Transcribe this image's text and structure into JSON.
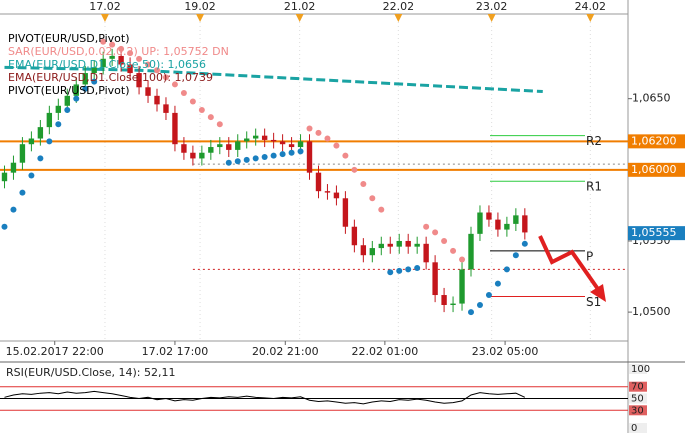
{
  "chart_data": {
    "type": "candlestick",
    "xlim": [
      -0.5,
      69.5
    ],
    "ylim": [
      1.04797,
      1.07095
    ],
    "yticks": [
      {
        "value": 1.065,
        "label": "1,0650"
      },
      {
        "value": 1.055,
        "label": "1,0550"
      },
      {
        "value": 1.05,
        "label": "1,0500"
      }
    ],
    "xticks": [
      {
        "value": 11.2,
        "label": "17.02"
      },
      {
        "value": 21.8,
        "label": "19.02"
      },
      {
        "value": 32.9,
        "label": "21.02"
      },
      {
        "value": 43.9,
        "label": "22.02"
      },
      {
        "value": 54.3,
        "label": "23.02"
      },
      {
        "value": 65.3,
        "label": "24.02"
      }
    ],
    "x2ticks": [
      {
        "value": 5.6,
        "label": "15.02.2017 22:00"
      },
      {
        "value": 19,
        "label": "17.02 17:00"
      },
      {
        "value": 31.3,
        "label": "20.02 21:00"
      },
      {
        "value": 42.4,
        "label": "22.02 01:00"
      },
      {
        "value": 55.8,
        "label": "23.02 05:00"
      }
    ],
    "up_color": "#1f9a2e",
    "down_color": "#c4161c",
    "open": [
      1.0592,
      1.0598,
      1.0605,
      1.0618,
      1.0622,
      1.063,
      1.064,
      1.0645,
      1.0652,
      1.066,
      1.0668,
      1.0672,
      1.0678,
      1.068,
      1.0674,
      1.0668,
      1.0658,
      1.0652,
      1.0646,
      1.064,
      1.0618,
      1.0612,
      1.0608,
      1.0612,
      1.0616,
      1.0618,
      1.0614,
      1.062,
      1.0622,
      1.0624,
      1.0621,
      1.062,
      1.0618,
      1.0616,
      1.062,
      1.0598,
      1.0585,
      1.0584,
      1.058,
      1.056,
      1.0547,
      1.054,
      1.0545,
      1.0548,
      1.0546,
      1.055,
      1.0546,
      1.0548,
      1.0535,
      1.0512,
      1.0505,
      1.0506,
      1.053,
      1.0555,
      1.057,
      1.0565,
      1.0558,
      1.0562,
      1.0568
    ],
    "high": [
      1.0603,
      1.061,
      1.0623,
      1.0627,
      1.0635,
      1.0645,
      1.065,
      1.0657,
      1.0665,
      1.0673,
      1.0677,
      1.0683,
      1.0685,
      1.0685,
      1.0679,
      1.0673,
      1.0663,
      1.0657,
      1.0651,
      1.0645,
      1.0623,
      1.0617,
      1.0617,
      1.0621,
      1.0623,
      1.0623,
      1.0625,
      1.0627,
      1.0629,
      1.0629,
      1.0626,
      1.0625,
      1.0623,
      1.0625,
      1.0625,
      1.0603,
      1.059,
      1.0589,
      1.0585,
      1.0565,
      1.0552,
      1.055,
      1.0553,
      1.0553,
      1.0555,
      1.0555,
      1.0553,
      1.0553,
      1.054,
      1.0517,
      1.0511,
      1.0535,
      1.056,
      1.0575,
      1.0575,
      1.057,
      1.0567,
      1.0573,
      1.0573
    ],
    "low": [
      1.0587,
      1.0593,
      1.06,
      1.0613,
      1.0617,
      1.0625,
      1.0635,
      1.064,
      1.0647,
      1.0655,
      1.0663,
      1.0667,
      1.0673,
      1.0669,
      1.0663,
      1.0653,
      1.0647,
      1.0641,
      1.0635,
      1.0613,
      1.0607,
      1.0603,
      1.0603,
      1.0607,
      1.0611,
      1.0609,
      1.0609,
      1.0615,
      1.0617,
      1.0616,
      1.0615,
      1.0613,
      1.0611,
      1.0611,
      1.0593,
      1.058,
      1.0579,
      1.0575,
      1.0555,
      1.0542,
      1.0535,
      1.0535,
      1.054,
      1.0541,
      1.0541,
      1.0541,
      1.0541,
      1.053,
      1.0507,
      1.05,
      1.05,
      1.0501,
      1.0525,
      1.055,
      1.056,
      1.0553,
      1.0553,
      1.0557,
      1.0551
    ],
    "close": [
      1.0598,
      1.0605,
      1.0618,
      1.0622,
      1.063,
      1.064,
      1.0645,
      1.0652,
      1.066,
      1.0668,
      1.0672,
      1.0678,
      1.068,
      1.0674,
      1.0668,
      1.0658,
      1.0652,
      1.0646,
      1.064,
      1.0618,
      1.0612,
      1.0608,
      1.0612,
      1.0616,
      1.0618,
      1.0614,
      1.062,
      1.0622,
      1.0624,
      1.0621,
      1.062,
      1.0618,
      1.0616,
      1.062,
      1.0598,
      1.0585,
      1.0584,
      1.058,
      1.056,
      1.0547,
      1.054,
      1.0545,
      1.0548,
      1.0546,
      1.055,
      1.0546,
      1.0548,
      1.0535,
      1.0512,
      1.0505,
      1.0506,
      1.053,
      1.0555,
      1.057,
      1.0565,
      1.0558,
      1.0562,
      1.0568,
      1.0556
    ],
    "sar": {
      "up_color": "#1a7fbf",
      "down_color": "#f08a8a",
      "values": [
        1.056,
        1.0572,
        1.0584,
        1.0596,
        1.0608,
        1.062,
        1.0632,
        1.0642,
        1.065,
        1.0657,
        1.0662,
        1.069,
        1.0688,
        1.0685,
        1.0682,
        1.0678,
        1.0674,
        1.067,
        1.0665,
        1.066,
        1.0654,
        1.0648,
        1.0642,
        1.0637,
        1.0632,
        1.0605,
        1.0606,
        1.0607,
        1.0608,
        1.0609,
        1.061,
        1.0611,
        1.0612,
        1.0613,
        1.0629,
        1.0626,
        1.0622,
        1.0617,
        1.061,
        1.06,
        1.059,
        1.058,
        1.0572,
        1.0528,
        1.0529,
        1.053,
        1.0531,
        1.056,
        1.0556,
        1.055,
        1.0543,
        1.0537,
        1.05,
        1.0505,
        1.0512,
        1.052,
        1.053,
        1.054,
        1.0548
      ]
    },
    "ema": {
      "color": "#1aa3a3",
      "x": [
        0,
        15,
        60
      ],
      "values": [
        1.0672,
        1.067,
        1.0655
      ]
    },
    "price_tags": [
      {
        "value": 1.062,
        "label": "1,06200",
        "color": "#f07d00"
      },
      {
        "value": 1.06,
        "label": "1,06000",
        "color": "#f07d00"
      },
      {
        "value": 1.05555,
        "label": "1,05555",
        "color": "#1a7fbf"
      }
    ],
    "dotted_lines": [
      {
        "value": 1.0604,
        "color": "#888888",
        "from": 21
      },
      {
        "value": 1.053,
        "color": "#d02020",
        "from": 21
      }
    ],
    "levels": [
      {
        "label": "R2",
        "value": 1.0624,
        "color": "#2ecc40"
      },
      {
        "label": "R1",
        "value": 1.0592,
        "color": "#2ecc40"
      },
      {
        "label": "P",
        "value": 1.0543,
        "color": "#000000"
      },
      {
        "label": "S1",
        "value": 1.0511,
        "color": "#e02020"
      }
    ],
    "legend": [
      {
        "text": "PIVOT(EUR/USD,Pivot)",
        "color": "#000000"
      },
      {
        "text": "SAR(EUR/USD,0.02,0.2)   UP: 1,05752   DN",
        "color": "#f08a8a"
      },
      {
        "text": "EMA(EUR/USD,D1.Close,50): 1,0656",
        "color": "#1aa3a3"
      },
      {
        "text": "EMA(EUR/USD,D1.Close,100): 1,0739",
        "color": "#8b1a1a"
      },
      {
        "text": "PIVOT(EUR/USD,Pivot)",
        "color": "#000000"
      }
    ],
    "rsi": {
      "title": "RSI(EUR/USD.Close, 14): 52,11",
      "ylim": [
        0,
        100
      ],
      "yticks": [
        100,
        70,
        50,
        30,
        0
      ],
      "values": [
        52,
        56,
        58,
        57,
        59,
        60,
        58,
        61,
        59,
        60,
        62,
        60,
        58,
        55,
        52,
        50,
        52,
        48,
        50,
        46,
        48,
        47,
        50,
        52,
        51,
        53,
        52,
        54,
        52,
        51,
        50,
        52,
        51,
        53,
        47,
        45,
        46,
        44,
        42,
        43,
        41,
        44,
        46,
        45,
        48,
        47,
        49,
        47,
        44,
        42,
        43,
        46,
        56,
        60,
        58,
        57,
        58,
        59,
        52
      ]
    }
  }
}
